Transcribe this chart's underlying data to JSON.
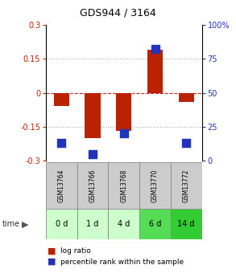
{
  "title": "GDS944 / 3164",
  "samples": [
    "GSM13764",
    "GSM13766",
    "GSM13768",
    "GSM13770",
    "GSM13772"
  ],
  "time_labels": [
    "0 d",
    "1 d",
    "4 d",
    "6 d",
    "14 d"
  ],
  "log_ratios": [
    -0.06,
    -0.2,
    -0.17,
    0.19,
    -0.04
  ],
  "percentile_ranks": [
    13,
    5,
    20,
    82,
    13
  ],
  "ylim_left": [
    -0.3,
    0.3
  ],
  "ylim_right": [
    0,
    100
  ],
  "yticks_left": [
    -0.3,
    -0.15,
    0,
    0.15,
    0.3
  ],
  "yticks_right": [
    0,
    25,
    50,
    75,
    100
  ],
  "bar_color": "#bb2200",
  "dot_color": "#2233bb",
  "grid_dotted_color": "#aaaaaa",
  "zero_line_color": "#cc2222",
  "bg_color": "#ffffff",
  "plot_bg": "#ffffff",
  "sample_header_color": "#cccccc",
  "time_row_colors": [
    "#ccffcc",
    "#ccffcc",
    "#ccffcc",
    "#55dd55",
    "#33cc33"
  ],
  "bar_width": 0.5,
  "dot_size": 45,
  "title_fontsize": 9,
  "tick_fontsize": 7,
  "sample_fontsize": 5.5,
  "time_fontsize": 7,
  "legend_fontsize": 6.5
}
